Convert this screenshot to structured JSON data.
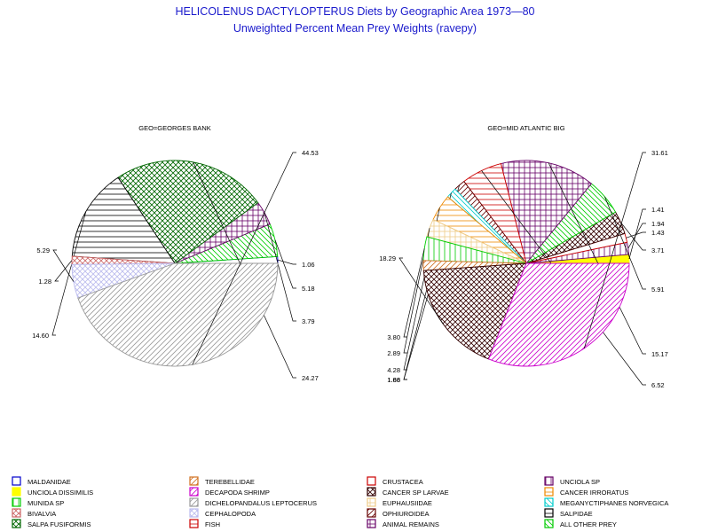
{
  "chart_data": {
    "type": "pie",
    "title": "HELICOLENUS DACTYLOPTERUS Diets by Geographic Area 1973—80",
    "subtitle": "Unweighted Percent Mean Prey Weights (ravepy)",
    "legend_position": "bottom",
    "categories": [
      {
        "name": "MALDANIDAE",
        "color": "#0000cc",
        "pattern": "outline"
      },
      {
        "name": "TEREBELLIDAE",
        "color": "#d07020",
        "pattern": "diag-r"
      },
      {
        "name": "CRUSTACEA",
        "color": "#cc0000",
        "pattern": "outline"
      },
      {
        "name": "UNCIOLA SP",
        "color": "#660066",
        "pattern": "vert"
      },
      {
        "name": "UNCIOLA DISSIMILIS",
        "color": "#ffff00",
        "pattern": "solid"
      },
      {
        "name": "DECAPODA SHRIMP",
        "color": "#cc00cc",
        "pattern": "diag-r"
      },
      {
        "name": "CANCER SP LARVAE",
        "color": "#330000",
        "pattern": "cross-diag"
      },
      {
        "name": "CANCER IRRORATUS",
        "color": "#ee8800",
        "pattern": "horiz"
      },
      {
        "name": "MUNIDA SP",
        "color": "#00cc00",
        "pattern": "vert"
      },
      {
        "name": "DICHELOPANDALUS LEPTOCERUS",
        "color": "#999999",
        "pattern": "diag-r"
      },
      {
        "name": "EUPHAUSIIDAE",
        "color": "#eecc88",
        "pattern": "grid"
      },
      {
        "name": "MEGANYCTIPHANES NORVEGICA",
        "color": "#00cccc",
        "pattern": "diag-l"
      },
      {
        "name": "BIVALVIA",
        "color": "#cc6666",
        "pattern": "cross-diag"
      },
      {
        "name": "CEPHALOPODA",
        "color": "#bbbbee",
        "pattern": "cross-diag"
      },
      {
        "name": "OPHIUROIDEA",
        "color": "#660000",
        "pattern": "diag-r"
      },
      {
        "name": "SALPIDAE",
        "color": "#000000",
        "pattern": "horiz"
      },
      {
        "name": "SALPA FUSIFORMIS",
        "color": "#006600",
        "pattern": "cross-diag"
      },
      {
        "name": "FISH",
        "color": "#cc0000",
        "pattern": "horiz"
      },
      {
        "name": "ANIMAL REMAINS",
        "color": "#660066",
        "pattern": "grid"
      },
      {
        "name": "ALL OTHER PREY",
        "color": "#00cc00",
        "pattern": "diag-l"
      }
    ],
    "pies": [
      {
        "title": "GEO=GEORGES BANK",
        "slices": [
          {
            "category": "MALDANIDAE",
            "value": 1.06,
            "label": "1.06"
          },
          {
            "category": "ALL OTHER PREY",
            "value": 5.18,
            "label": "5.18"
          },
          {
            "category": "ANIMAL REMAINS",
            "value": 3.79,
            "label": "3.79"
          },
          {
            "category": "SALPA FUSIFORMIS",
            "value": 24.27,
            "label": "24.27"
          },
          {
            "category": "SALPIDAE",
            "value": 14.6,
            "label": "14.60"
          },
          {
            "category": "BIVALVIA",
            "value": 1.28,
            "label": "1.28"
          },
          {
            "category": "CEPHALOPODA",
            "value": 5.29,
            "label": "5.29"
          },
          {
            "category": "DICHELOPANDALUS LEPTOCERUS",
            "value": 44.53,
            "label": "44.53"
          }
        ]
      },
      {
        "title": "GEO=MID ATLANTIC BIG",
        "slices": [
          {
            "category": "UNCIOLA DISSIMILIS",
            "value": 1.41,
            "label": "1.41"
          },
          {
            "category": "UNCIOLA SP",
            "value": 1.94,
            "label": "1.94"
          },
          {
            "category": "CRUSTACEA",
            "value": 1.43,
            "label": "1.43"
          },
          {
            "category": "CANCER SP LARVAE",
            "value": 3.71,
            "label": "3.71"
          },
          {
            "category": "ALL OTHER PREY",
            "value": 5.91,
            "label": "5.91"
          },
          {
            "category": "ANIMAL REMAINS",
            "value": 15.17,
            "label": "15.17"
          },
          {
            "category": "FISH",
            "value": 6.52,
            "label": "6.52"
          },
          {
            "category": "OPHIUROIDEA",
            "value": 1.86,
            "label": "1.86"
          },
          {
            "category": "MEGANYCTIPHANES NORVEGICA",
            "value": 1.68,
            "label": "1.68"
          },
          {
            "category": "CANCER IRRORATUS",
            "value": 4.28,
            "label": "4.28"
          },
          {
            "category": "EUPHAUSIIDAE",
            "value": 2.89,
            "label": "2.89"
          },
          {
            "category": "MUNIDA SP",
            "value": 3.8,
            "label": "3.80"
          },
          {
            "category": "TEREBELLIDAE",
            "value": 1.6,
            "label": ""
          },
          {
            "category": "CANCER SP LARVAE",
            "value": 18.29,
            "label": "18.29"
          },
          {
            "category": "DECAPODA SHRIMP",
            "value": 31.61,
            "label": "31.61"
          }
        ]
      }
    ]
  }
}
